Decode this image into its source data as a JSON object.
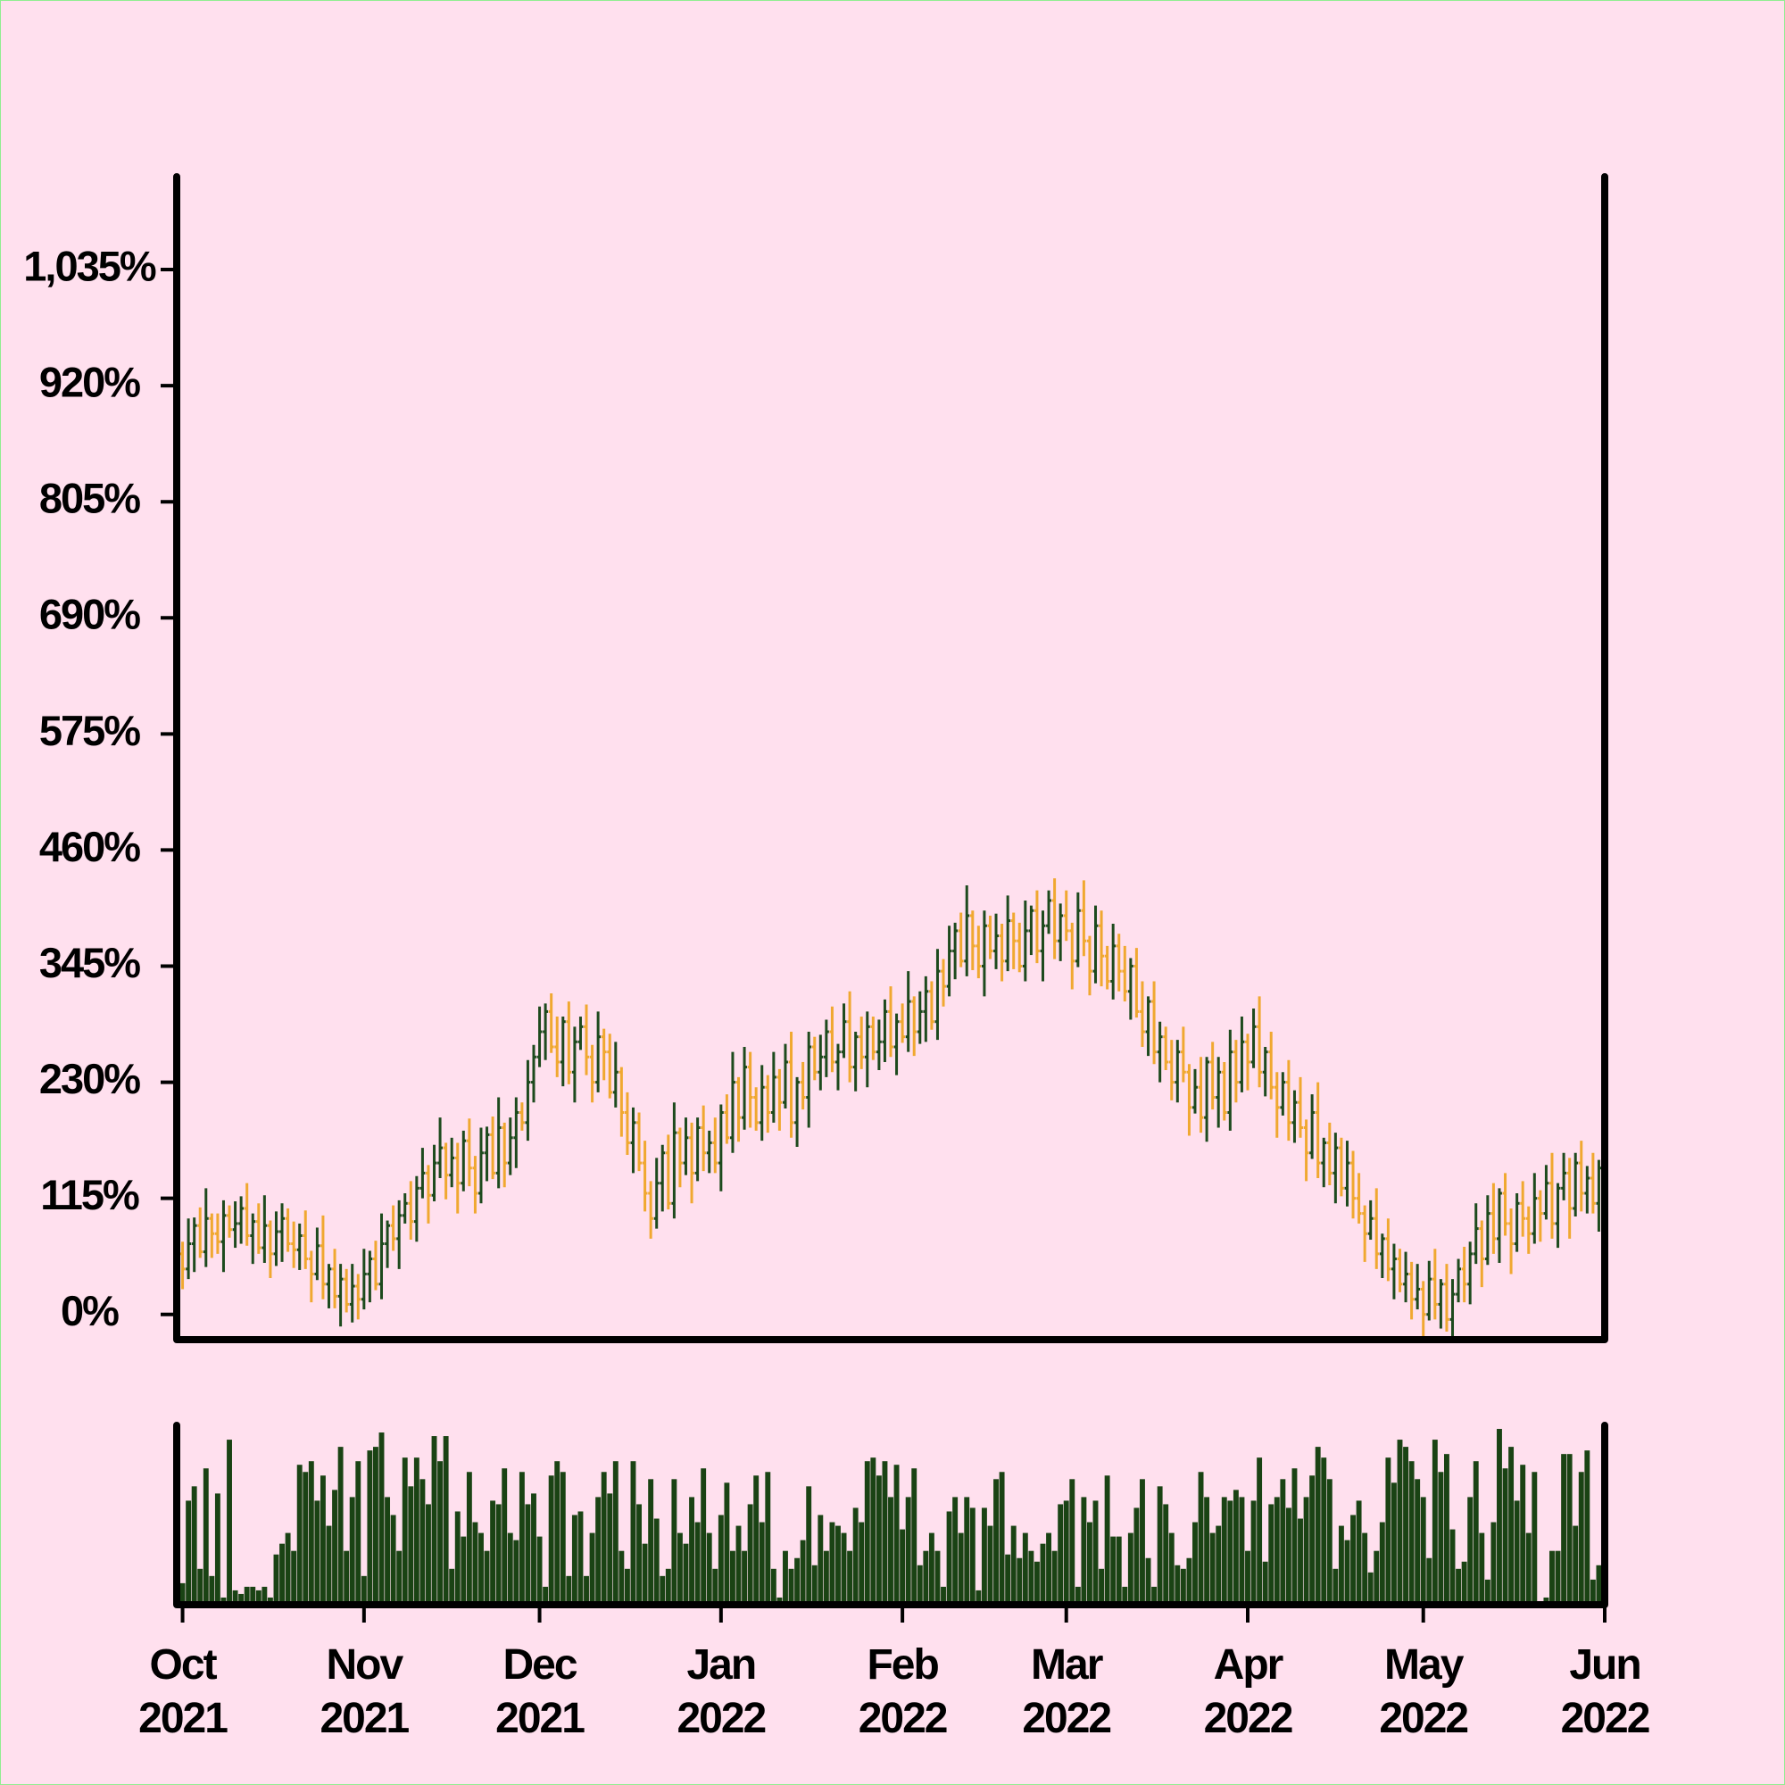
{
  "chart_data": {
    "type": "ohlc",
    "up_color": "#1d4a1d",
    "down_color": "#f0a830",
    "volume_color": "#1a4314",
    "x": [
      0,
      1,
      2,
      3,
      4,
      5,
      6,
      7,
      8,
      9,
      10,
      11,
      12,
      13,
      14,
      15,
      16,
      17,
      18,
      19,
      20,
      21,
      22,
      23,
      24,
      25,
      26,
      27,
      28,
      29,
      30,
      31,
      32,
      33,
      34,
      35,
      36,
      37,
      38,
      39,
      40,
      41,
      42,
      43,
      44,
      45,
      46,
      47,
      48,
      49,
      50,
      51,
      52,
      53,
      54,
      55,
      56,
      57,
      58,
      59,
      60,
      61,
      62,
      63,
      64,
      65,
      66,
      67,
      68,
      69,
      70,
      71,
      72,
      73,
      74,
      75,
      76,
      77,
      78,
      79,
      80,
      81,
      82,
      83,
      84,
      85,
      86,
      87,
      88,
      89,
      90,
      91,
      92,
      93,
      94,
      95,
      96,
      97,
      98,
      99,
      100,
      101,
      102,
      103,
      104,
      105,
      106,
      107,
      108,
      109,
      110,
      111,
      112,
      113,
      114,
      115,
      116,
      117,
      118,
      119,
      120,
      121,
      122,
      123,
      124,
      125,
      126,
      127,
      128,
      129,
      130,
      131,
      132,
      133,
      134,
      135,
      136,
      137,
      138,
      139,
      140,
      141,
      142,
      143,
      144,
      145,
      146,
      147,
      148,
      149,
      150,
      151,
      152,
      153,
      154,
      155,
      156,
      157,
      158,
      159,
      160,
      161,
      162,
      163,
      164,
      165,
      166,
      167,
      168,
      169,
      170,
      171,
      172,
      173,
      174,
      175,
      176,
      177,
      178,
      179,
      180,
      181,
      182,
      183,
      184,
      185,
      186,
      187,
      188,
      189,
      190,
      191,
      192,
      193,
      194,
      195,
      196,
      197,
      198,
      199,
      200,
      201,
      202,
      203,
      204,
      205,
      206,
      207,
      208,
      209,
      210,
      211,
      212,
      213,
      214,
      215,
      216,
      217,
      218,
      219,
      220,
      221,
      222,
      223,
      224,
      225,
      226,
      227,
      228,
      229,
      230,
      231,
      232,
      233,
      234,
      235,
      236,
      237,
      238,
      239,
      240,
      241,
      242
    ],
    "open": [
      60,
      45,
      70,
      88,
      62,
      95,
      80,
      72,
      98,
      84,
      90,
      105,
      78,
      92,
      66,
      88,
      60,
      82,
      95,
      70,
      64,
      78,
      55,
      40,
      68,
      30,
      45,
      18,
      35,
      10,
      28,
      15,
      40,
      55,
      30,
      70,
      88,
      75,
      98,
      110,
      92,
      125,
      140,
      118,
      150,
      165,
      138,
      155,
      130,
      172,
      145,
      120,
      160,
      178,
      140,
      185,
      150,
      175,
      200,
      190,
      230,
      255,
      280,
      300,
      265,
      250,
      290,
      240,
      270,
      285,
      255,
      230,
      275,
      260,
      220,
      240,
      200,
      170,
      190,
      150,
      120,
      95,
      130,
      160,
      110,
      180,
      150,
      175,
      140,
      185,
      160,
      170,
      150,
      200,
      175,
      230,
      195,
      245,
      215,
      190,
      225,
      200,
      235,
      210,
      250,
      190,
      230,
      215,
      265,
      240,
      255,
      280,
      250,
      260,
      290,
      245,
      275,
      255,
      285,
      260,
      270,
      300,
      265,
      290,
      275,
      310,
      280,
      300,
      320,
      290,
      340,
      325,
      360,
      380,
      350,
      395,
      365,
      345,
      385,
      360,
      375,
      350,
      390,
      370,
      345,
      380,
      400,
      360,
      385,
      410,
      370,
      395,
      380,
      350,
      400,
      370,
      340,
      385,
      355,
      330,
      365,
      340,
      320,
      345,
      300,
      280,
      310,
      260,
      275,
      250,
      230,
      260,
      240,
      205,
      225,
      195,
      250,
      215,
      240,
      200,
      260,
      230,
      270,
      250,
      285,
      240,
      260,
      225,
      205,
      230,
      190,
      210,
      185,
      160,
      200,
      150,
      170,
      140,
      165,
      125,
      150,
      115,
      100,
      80,
      95,
      60,
      75,
      45,
      55,
      30,
      40,
      15,
      25,
      0,
      35,
      10,
      30,
      -5,
      20,
      45,
      30,
      60,
      85,
      55,
      100,
      75,
      120,
      90,
      70,
      110,
      95,
      80,
      115,
      100,
      130,
      90,
      125,
      140,
      105,
      150,
      120,
      135,
      110
    ],
    "high": [
      72,
      95,
      96,
      106,
      125,
      100,
      100,
      113,
      108,
      112,
      117,
      130,
      100,
      110,
      118,
      93,
      102,
      110,
      105,
      92,
      90,
      103,
      63,
      86,
      98,
      50,
      65,
      50,
      45,
      50,
      40,
      65,
      63,
      73,
      100,
      93,
      108,
      113,
      120,
      132,
      137,
      165,
      148,
      168,
      195,
      170,
      175,
      170,
      182,
      194,
      157,
      185,
      186,
      196,
      215,
      190,
      195,
      215,
      210,
      252,
      267,
      305,
      308,
      318,
      295,
      295,
      310,
      285,
      295,
      307,
      267,
      300,
      283,
      278,
      270,
      245,
      220,
      205,
      200,
      172,
      132,
      155,
      168,
      178,
      210,
      185,
      195,
      190,
      195,
      207,
      182,
      195,
      208,
      218,
      260,
      235,
      265,
      260,
      225,
      247,
      237,
      260,
      243,
      268,
      280,
      235,
      250,
      280,
      275,
      277,
      292,
      305,
      268,
      308,
      320,
      280,
      295,
      300,
      295,
      292,
      312,
      325,
      298,
      308,
      340,
      315,
      320,
      335,
      330,
      362,
      352,
      385,
      388,
      398,
      425,
      400,
      385,
      400,
      395,
      397,
      387,
      415,
      398,
      388,
      410,
      405,
      420,
      400,
      420,
      432,
      407,
      420,
      388,
      418,
      430,
      375,
      405,
      400,
      365,
      387,
      377,
      365,
      353,
      363,
      330,
      315,
      330,
      290,
      285,
      272,
      272,
      285,
      248,
      243,
      255,
      255,
      270,
      255,
      250,
      282,
      272,
      295,
      278,
      303,
      315,
      265,
      280,
      240,
      240,
      252,
      222,
      235,
      193,
      218,
      230,
      175,
      190,
      180,
      175,
      172,
      162,
      140,
      108,
      113,
      125,
      80,
      95,
      70,
      65,
      62,
      52,
      50,
      33,
      53,
      65,
      35,
      50,
      35,
      55,
      67,
      72,
      110,
      93,
      118,
      130,
      125,
      140,
      105,
      120,
      132,
      107,
      140,
      123,
      148,
      160,
      130,
      160,
      155,
      160,
      172,
      147,
      160,
      153
    ],
    "low": [
      25,
      35,
      42,
      56,
      47,
      56,
      60,
      42,
      76,
      66,
      70,
      68,
      50,
      60,
      51,
      36,
      48,
      52,
      62,
      46,
      44,
      45,
      12,
      34,
      15,
      6,
      6,
      -12,
      2,
      -8,
      -5,
      5,
      12,
      24,
      15,
      46,
      63,
      45,
      90,
      74,
      72,
      115,
      90,
      112,
      135,
      114,
      126,
      100,
      122,
      127,
      100,
      110,
      132,
      134,
      125,
      126,
      138,
      145,
      182,
      172,
      210,
      245,
      252,
      259,
      235,
      226,
      228,
      210,
      262,
      237,
      210,
      220,
      232,
      214,
      205,
      176,
      158,
      140,
      142,
      102,
      75,
      85,
      102,
      104,
      95,
      126,
      138,
      110,
      132,
      142,
      140,
      140,
      122,
      169,
      160,
      171,
      183,
      185,
      182,
      172,
      180,
      190,
      182,
      204,
      175,
      166,
      203,
      185,
      232,
      222,
      235,
      240,
      222,
      254,
      230,
      221,
      243,
      225,
      252,
      242,
      250,
      255,
      237,
      269,
      260,
      256,
      268,
      270,
      282,
      272,
      305,
      315,
      332,
      344,
      335,
      341,
      333,
      315,
      352,
      342,
      330,
      340,
      342,
      339,
      330,
      356,
      348,
      330,
      377,
      352,
      350,
      370,
      322,
      344,
      355,
      316,
      328,
      325,
      322,
      312,
      320,
      310,
      292,
      294,
      265,
      256,
      248,
      230,
      242,
      212,
      210,
      230,
      177,
      199,
      180,
      171,
      203,
      185,
      192,
      182,
      210,
      220,
      222,
      244,
      225,
      216,
      213,
      175,
      197,
      172,
      170,
      175,
      132,
      154,
      135,
      126,
      128,
      110,
      117,
      107,
      95,
      90,
      52,
      74,
      45,
      36,
      33,
      15,
      22,
      12,
      -5,
      5,
      -28,
      -6,
      -5,
      -14,
      -17,
      -35,
      12,
      12,
      10,
      50,
      27,
      49,
      60,
      51,
      78,
      40,
      62,
      77,
      60,
      70,
      72,
      94,
      75,
      66,
      113,
      75,
      97,
      102,
      100,
      100,
      82
    ],
    "close": [
      45,
      70,
      88,
      62,
      95,
      80,
      72,
      98,
      84,
      90,
      105,
      78,
      92,
      66,
      88,
      60,
      82,
      95,
      70,
      64,
      78,
      55,
      40,
      68,
      30,
      45,
      18,
      35,
      10,
      28,
      15,
      40,
      55,
      30,
      70,
      88,
      75,
      98,
      110,
      92,
      125,
      140,
      118,
      150,
      165,
      138,
      155,
      130,
      172,
      145,
      120,
      160,
      178,
      140,
      185,
      150,
      175,
      200,
      190,
      230,
      255,
      280,
      300,
      265,
      250,
      290,
      240,
      270,
      285,
      255,
      230,
      275,
      260,
      220,
      240,
      200,
      170,
      190,
      150,
      120,
      95,
      130,
      160,
      110,
      180,
      150,
      175,
      140,
      185,
      160,
      170,
      150,
      200,
      175,
      230,
      195,
      245,
      215,
      190,
      225,
      200,
      235,
      210,
      250,
      190,
      230,
      215,
      265,
      240,
      255,
      280,
      250,
      260,
      290,
      245,
      275,
      255,
      285,
      260,
      270,
      300,
      265,
      290,
      275,
      310,
      280,
      300,
      320,
      290,
      340,
      325,
      360,
      380,
      350,
      395,
      365,
      345,
      385,
      360,
      375,
      350,
      390,
      370,
      345,
      380,
      400,
      360,
      385,
      410,
      370,
      395,
      380,
      350,
      400,
      370,
      340,
      385,
      355,
      330,
      365,
      340,
      320,
      345,
      300,
      280,
      310,
      260,
      275,
      250,
      230,
      260,
      240,
      205,
      225,
      195,
      250,
      215,
      240,
      200,
      260,
      230,
      270,
      250,
      285,
      240,
      260,
      225,
      205,
      230,
      190,
      210,
      185,
      160,
      200,
      150,
      170,
      140,
      165,
      125,
      150,
      115,
      100,
      80,
      95,
      60,
      75,
      45,
      55,
      30,
      40,
      15,
      25,
      0,
      35,
      10,
      30,
      -5,
      20,
      45,
      30,
      60,
      85,
      55,
      100,
      75,
      120,
      90,
      70,
      110,
      95,
      80,
      115,
      100,
      130,
      90,
      125,
      140,
      105,
      150,
      120,
      135,
      110,
      145
    ],
    "volume": [
      12,
      58,
      66,
      20,
      76,
      16,
      62,
      4,
      92,
      8,
      6,
      10,
      10,
      8,
      10,
      4,
      28,
      34,
      40,
      30,
      78,
      74,
      80,
      58,
      72,
      44,
      64,
      88,
      30,
      60,
      80,
      16,
      86,
      88,
      96,
      60,
      50,
      30,
      82,
      66,
      82,
      70,
      56,
      94,
      80,
      94,
      20,
      52,
      38,
      74,
      46,
      40,
      30,
      58,
      56,
      76,
      40,
      36,
      74,
      56,
      62,
      38,
      10,
      72,
      80,
      74,
      16,
      50,
      52,
      16,
      40,
      60,
      74,
      62,
      80,
      30,
      20,
      80,
      56,
      34,
      70,
      48,
      16,
      20,
      70,
      40,
      34,
      60,
      46,
      76,
      40,
      20,
      50,
      68,
      30,
      44,
      30,
      56,
      72,
      46,
      74,
      20,
      4,
      30,
      20,
      26,
      36,
      66,
      22,
      50,
      30,
      46,
      44,
      40,
      30,
      54,
      46,
      80,
      82,
      72,
      80,
      60,
      78,
      42,
      60,
      76,
      22,
      30,
      40,
      30,
      10,
      52,
      60,
      40,
      60,
      54,
      8,
      54,
      44,
      70,
      74,
      28,
      44,
      26,
      40,
      30,
      24,
      34,
      40,
      30,
      56,
      58,
      70,
      10,
      60,
      46,
      58,
      20,
      72,
      38,
      38,
      10,
      40,
      54,
      70,
      26,
      10,
      66,
      56,
      40,
      22,
      20,
      26,
      46,
      74,
      60,
      40,
      44,
      60,
      58,
      64,
      60,
      30,
      58,
      82,
      24,
      56,
      60,
      70,
      54,
      76,
      48,
      60,
      72,
      88,
      82,
      70,
      20,
      44,
      36,
      50,
      58,
      40,
      18,
      30,
      46,
      82,
      68,
      92,
      88,
      80,
      70,
      60,
      26,
      92,
      74,
      84,
      42,
      20,
      24,
      60,
      80,
      40,
      14,
      46,
      98,
      76,
      88,
      58,
      78,
      40,
      74,
      2,
      4,
      30,
      30,
      84,
      84,
      44,
      74,
      86,
      14,
      22
    ],
    "xlim": [
      -1,
      243
    ],
    "xticks": [
      {
        "value": 0,
        "label": "Oct\n2021"
      },
      {
        "value": 31,
        "label": "Nov\n2021"
      },
      {
        "value": 61,
        "label": "Dec\n2021"
      },
      {
        "value": 92,
        "label": "Jan\n2022"
      },
      {
        "value": 123,
        "label": "Feb\n2022"
      },
      {
        "value": 151,
        "label": "Mar\n2022"
      },
      {
        "value": 182,
        "label": "Apr\n2022"
      },
      {
        "value": 212,
        "label": "May\n2022"
      },
      {
        "value": 243,
        "label": "Jun\n2022"
      }
    ],
    "ylim": [
      -25,
      1127
    ],
    "yticks": [
      {
        "value": 0,
        "label": "0%"
      },
      {
        "value": 115,
        "label": "115%"
      },
      {
        "value": 230,
        "label": "230%"
      },
      {
        "value": 345,
        "label": "345%"
      },
      {
        "value": 460,
        "label": "460%"
      },
      {
        "value": 575,
        "label": "575%"
      },
      {
        "value": 690,
        "label": "690%"
      },
      {
        "value": 805,
        "label": "805%"
      },
      {
        "value": 920,
        "label": "920%"
      },
      {
        "value": 1035,
        "label": "1,035%"
      }
    ],
    "volume_ylim": [
      0,
      100
    ]
  }
}
